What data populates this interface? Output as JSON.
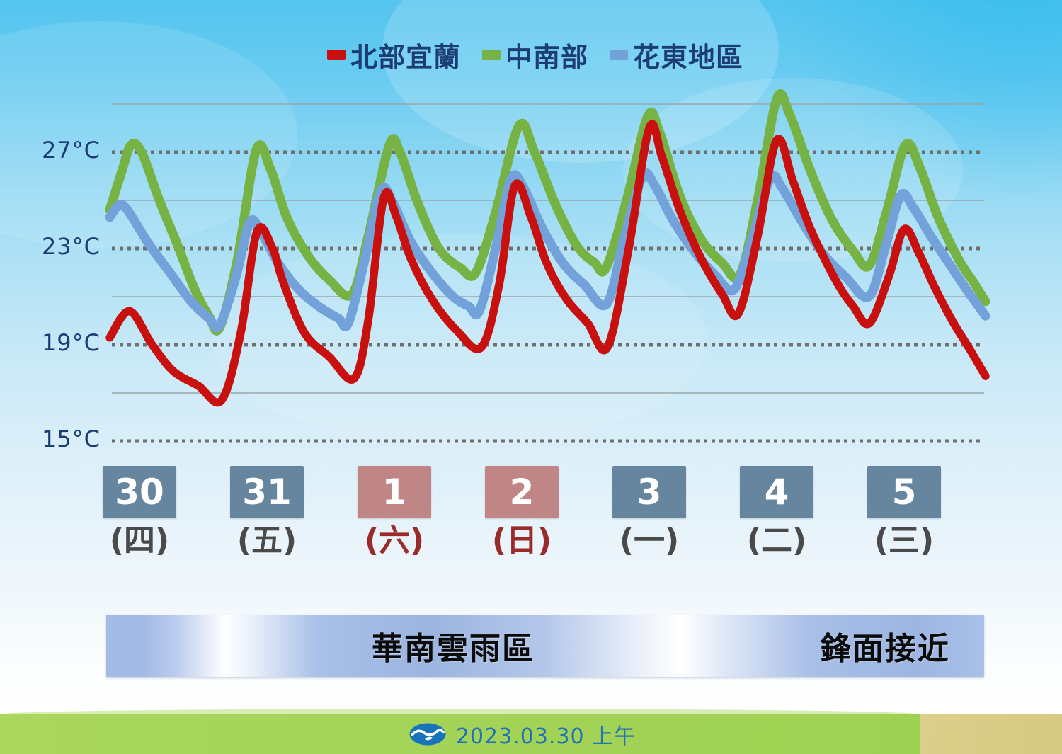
{
  "banner": {
    "left_label": "華南雲雨區",
    "right_label": "鋒面接近"
  },
  "footer": {
    "date_text": "2023.03.30 上午",
    "logo": "cwb-wave-logo"
  },
  "chart_data": {
    "type": "line",
    "title": "",
    "ylabel": "°C",
    "ylim": [
      15,
      29
    ],
    "grid": "horizontal-only",
    "legend_position": "top-center",
    "yticks_labeled": [
      {
        "temp": 27,
        "label": "27°C",
        "style": "dotted"
      },
      {
        "temp": 23,
        "label": "23°C",
        "style": "dotted"
      },
      {
        "temp": 19,
        "label": "19°C",
        "style": "dotted"
      },
      {
        "temp": 15,
        "label": "15°C",
        "style": "dotted"
      }
    ],
    "yticks_minor": {
      "style": "solid",
      "temps": [
        29,
        25,
        21,
        17
      ]
    },
    "x_categories": [
      {
        "day": "30",
        "weekday": "(四)",
        "weekend": false
      },
      {
        "day": "31",
        "weekday": "(五)",
        "weekend": false
      },
      {
        "day": "1",
        "weekday": "(六)",
        "weekend": true
      },
      {
        "day": "2",
        "weekday": "(日)",
        "weekend": true
      },
      {
        "day": "3",
        "weekday": "(一)",
        "weekend": false
      },
      {
        "day": "4",
        "weekday": "(二)",
        "weekend": false
      },
      {
        "day": "5",
        "weekday": "(三)",
        "weekend": false
      }
    ],
    "series": [
      {
        "name": "北部宜蘭",
        "color": "#c8100f",
        "points": [
          [
            155,
            19.3
          ],
          [
            183,
            20.4
          ],
          [
            215,
            19.0
          ],
          [
            245,
            17.9
          ],
          [
            280,
            17.3
          ],
          [
            313,
            16.7
          ],
          [
            340,
            19.5
          ],
          [
            363,
            23.7
          ],
          [
            385,
            23.0
          ],
          [
            400,
            21.6
          ],
          [
            430,
            19.5
          ],
          [
            465,
            18.5
          ],
          [
            500,
            17.6
          ],
          [
            520,
            20.0
          ],
          [
            542,
            25.1
          ],
          [
            560,
            24.3
          ],
          [
            580,
            22.6
          ],
          [
            610,
            20.9
          ],
          [
            645,
            19.6
          ],
          [
            680,
            18.9
          ],
          [
            705,
            21.5
          ],
          [
            727,
            25.6
          ],
          [
            750,
            24.3
          ],
          [
            772,
            22.4
          ],
          [
            800,
            20.9
          ],
          [
            830,
            19.9
          ],
          [
            858,
            18.9
          ],
          [
            888,
            23.0
          ],
          [
            917,
            28.0
          ],
          [
            935,
            26.8
          ],
          [
            960,
            24.6
          ],
          [
            990,
            22.6
          ],
          [
            1020,
            21.1
          ],
          [
            1043,
            20.3
          ],
          [
            1070,
            23.5
          ],
          [
            1097,
            27.5
          ],
          [
            1120,
            25.8
          ],
          [
            1145,
            23.8
          ],
          [
            1180,
            21.7
          ],
          [
            1205,
            20.6
          ],
          [
            1228,
            19.9
          ],
          [
            1255,
            21.8
          ],
          [
            1277,
            23.8
          ],
          [
            1298,
            22.8
          ],
          [
            1320,
            21.4
          ],
          [
            1345,
            20.0
          ],
          [
            1370,
            18.8
          ],
          [
            1392,
            17.7
          ]
        ]
      },
      {
        "name": "中南部",
        "color": "#77b244",
        "points": [
          [
            155,
            24.6
          ],
          [
            172,
            26.2
          ],
          [
            185,
            27.3
          ],
          [
            200,
            27.0
          ],
          [
            225,
            25.0
          ],
          [
            250,
            23.2
          ],
          [
            275,
            21.3
          ],
          [
            295,
            20.2
          ],
          [
            310,
            19.7
          ],
          [
            335,
            22.5
          ],
          [
            362,
            27.1
          ],
          [
            382,
            26.3
          ],
          [
            405,
            24.3
          ],
          [
            435,
            22.7
          ],
          [
            465,
            21.7
          ],
          [
            497,
            21.1
          ],
          [
            520,
            23.5
          ],
          [
            550,
            27.3
          ],
          [
            565,
            27.0
          ],
          [
            590,
            24.9
          ],
          [
            620,
            23.0
          ],
          [
            650,
            22.2
          ],
          [
            672,
            22.0
          ],
          [
            700,
            24.5
          ],
          [
            733,
            28.1
          ],
          [
            755,
            27.0
          ],
          [
            785,
            24.8
          ],
          [
            815,
            23.1
          ],
          [
            840,
            22.4
          ],
          [
            856,
            22.2
          ],
          [
            885,
            25.0
          ],
          [
            915,
            28.5
          ],
          [
            932,
            27.8
          ],
          [
            960,
            25.2
          ],
          [
            990,
            23.4
          ],
          [
            1020,
            22.4
          ],
          [
            1045,
            21.9
          ],
          [
            1070,
            25.0
          ],
          [
            1097,
            29.2
          ],
          [
            1115,
            28.6
          ],
          [
            1145,
            26.2
          ],
          [
            1175,
            24.2
          ],
          [
            1205,
            22.9
          ],
          [
            1228,
            22.3
          ],
          [
            1252,
            24.5
          ],
          [
            1279,
            27.3
          ],
          [
            1300,
            26.3
          ],
          [
            1325,
            24.3
          ],
          [
            1355,
            22.5
          ],
          [
            1375,
            21.6
          ],
          [
            1392,
            20.8
          ]
        ]
      },
      {
        "name": "花東地區",
        "color": "#72a2d9",
        "points": [
          [
            155,
            24.3
          ],
          [
            168,
            24.8
          ],
          [
            180,
            24.6
          ],
          [
            210,
            23.2
          ],
          [
            240,
            22.0
          ],
          [
            270,
            20.8
          ],
          [
            295,
            20.1
          ],
          [
            310,
            19.8
          ],
          [
            333,
            21.8
          ],
          [
            353,
            24.1
          ],
          [
            370,
            23.6
          ],
          [
            395,
            22.3
          ],
          [
            425,
            21.2
          ],
          [
            455,
            20.5
          ],
          [
            478,
            20.1
          ],
          [
            492,
            19.9
          ],
          [
            515,
            22.5
          ],
          [
            538,
            25.4
          ],
          [
            555,
            24.9
          ],
          [
            580,
            23.3
          ],
          [
            610,
            22.0
          ],
          [
            640,
            21.0
          ],
          [
            662,
            20.6
          ],
          [
            677,
            20.4
          ],
          [
            700,
            23.0
          ],
          [
            722,
            25.9
          ],
          [
            740,
            25.5
          ],
          [
            765,
            23.9
          ],
          [
            795,
            22.4
          ],
          [
            825,
            21.5
          ],
          [
            857,
            20.7
          ],
          [
            882,
            23.5
          ],
          [
            908,
            26.0
          ],
          [
            925,
            25.6
          ],
          [
            950,
            24.2
          ],
          [
            980,
            22.9
          ],
          [
            1010,
            21.9
          ],
          [
            1037,
            21.3
          ],
          [
            1062,
            23.4
          ],
          [
            1088,
            25.9
          ],
          [
            1105,
            25.5
          ],
          [
            1135,
            24.0
          ],
          [
            1165,
            22.7
          ],
          [
            1195,
            21.8
          ],
          [
            1227,
            21.0
          ],
          [
            1250,
            23.0
          ],
          [
            1272,
            25.2
          ],
          [
            1290,
            24.7
          ],
          [
            1315,
            23.5
          ],
          [
            1340,
            22.4
          ],
          [
            1365,
            21.3
          ],
          [
            1392,
            20.2
          ]
        ]
      }
    ]
  }
}
